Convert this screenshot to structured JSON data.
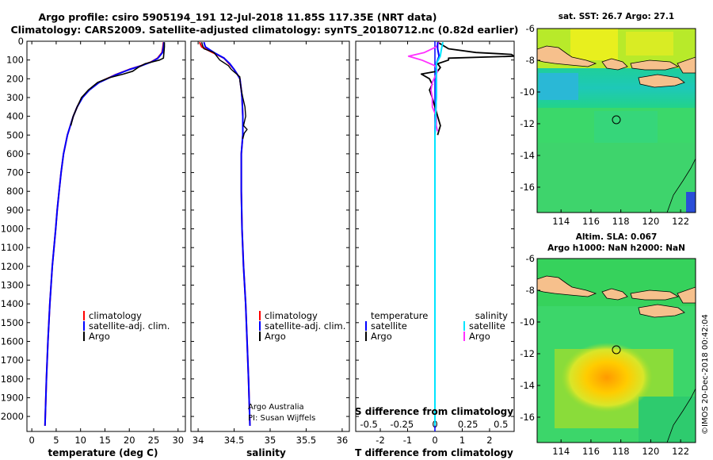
{
  "title": {
    "line1": "Argo profile: csiro 5905194_191 12-Jul-2018 11.85S 117.35E (NRT data)",
    "line2": "Climatology: CARS2009. Satellite-adjusted climatology: synTS_20180712.nc (0.82d earlier)"
  },
  "colors": {
    "climatology": "#ff0000",
    "satellite": "#0000ff",
    "argo": "#000000",
    "sat_salinity": "#00e5ff",
    "argo_salinity": "#ff30ff"
  },
  "chart_data": [
    {
      "id": "temperature",
      "type": "line",
      "xlabel": "temperature (deg C)",
      "ylabel": "",
      "xlim": [
        -1,
        31.5
      ],
      "ylim": [
        2080,
        0
      ],
      "xticks": [
        0,
        5,
        10,
        15,
        20,
        25,
        30
      ],
      "yticks": [
        0,
        100,
        200,
        300,
        400,
        500,
        600,
        700,
        800,
        900,
        1000,
        1100,
        1200,
        1300,
        1400,
        1500,
        1600,
        1700,
        1800,
        1900,
        2000
      ],
      "legend": [
        "climatology",
        "satellite-adj. clim.",
        "Argo"
      ],
      "series": [
        {
          "name": "climatology",
          "depth": [
            5,
            30,
            60,
            90,
            110,
            130,
            150,
            180,
            220,
            260,
            300,
            350,
            400,
            500,
            600,
            700,
            800,
            900,
            1000,
            1200,
            1400,
            1600,
            1800,
            2050
          ],
          "values": [
            27,
            26.9,
            26.7,
            25.8,
            24.5,
            22.4,
            20,
            17,
            13.7,
            11.7,
            10.3,
            9.3,
            8.5,
            7.3,
            6.5,
            6,
            5.6,
            5.2,
            4.9,
            4.2,
            3.7,
            3.3,
            3,
            2.7
          ]
        },
        {
          "name": "satellite-adj. clim.",
          "depth": [
            5,
            30,
            60,
            90,
            110,
            130,
            150,
            180,
            220,
            260,
            300,
            350,
            400,
            500,
            600,
            700,
            800,
            900,
            1000,
            1200,
            1400,
            1600,
            1800,
            2050
          ],
          "values": [
            27.1,
            27,
            26.8,
            25.9,
            24.6,
            22.5,
            20.1,
            17.1,
            13.8,
            11.8,
            10.4,
            9.3,
            8.5,
            7.3,
            6.5,
            6,
            5.6,
            5.2,
            4.9,
            4.2,
            3.7,
            3.3,
            3,
            2.7
          ]
        },
        {
          "name": "Argo",
          "depth": [
            5,
            30,
            60,
            90,
            100,
            120,
            140,
            160,
            175,
            195,
            220,
            260,
            300,
            350,
            400,
            450
          ],
          "values": [
            27.2,
            27.2,
            27.1,
            27,
            26.2,
            23.2,
            21.8,
            20.7,
            18.8,
            15.8,
            13.5,
            11.6,
            10.2,
            9.3,
            8.5,
            8
          ]
        }
      ]
    },
    {
      "id": "salinity",
      "type": "line",
      "xlabel": "salinity",
      "ylabel": "",
      "xlim": [
        33.9,
        36.1
      ],
      "ylim": [
        2080,
        0
      ],
      "xticks": [
        34,
        34.5,
        35,
        35.5,
        36
      ],
      "xticklabels": [
        "34",
        "34.5",
        "35",
        "35.5",
        "36"
      ],
      "legend": [
        "climatology",
        "satellite-adj. clim.",
        "Argo"
      ],
      "credit": [
        "Argo Australia",
        "PI: Susan Wijffels"
      ],
      "series": [
        {
          "name": "climatology",
          "depth": [
            5,
            30,
            60,
            90,
            120,
            150,
            180,
            200,
            260,
            300,
            400,
            500,
            600,
            800,
            1000,
            1200,
            1400,
            1600,
            1800,
            2050
          ],
          "values": [
            34.02,
            34.05,
            34.2,
            34.36,
            34.43,
            34.5,
            34.55,
            34.58,
            34.6,
            34.61,
            34.62,
            34.62,
            34.6,
            34.6,
            34.61,
            34.63,
            34.66,
            34.68,
            34.7,
            34.72
          ]
        },
        {
          "name": "satellite-adj. clim.",
          "depth": [
            5,
            30,
            60,
            90,
            120,
            150,
            180,
            200,
            260,
            300,
            400,
            500,
            600,
            800,
            1000,
            1200,
            1400,
            1600,
            1800,
            2050
          ],
          "values": [
            34.08,
            34.1,
            34.22,
            34.36,
            34.44,
            34.5,
            34.55,
            34.58,
            34.6,
            34.61,
            34.62,
            34.62,
            34.6,
            34.6,
            34.61,
            34.63,
            34.66,
            34.68,
            34.7,
            34.72
          ]
        },
        {
          "name": "Argo",
          "depth": [
            5,
            20,
            40,
            60,
            80,
            100,
            110,
            130,
            150,
            170,
            190,
            210,
            260,
            300,
            350,
            400,
            450,
            470,
            490,
            520
          ],
          "values": [
            34.05,
            34.06,
            34.08,
            34.22,
            34.26,
            34.3,
            34.34,
            34.42,
            34.46,
            34.52,
            34.58,
            34.58,
            34.6,
            34.62,
            34.65,
            34.66,
            34.63,
            34.68,
            34.64,
            34.62
          ]
        }
      ]
    },
    {
      "id": "difference",
      "type": "line",
      "xlabel": "T difference from climatology",
      "xlabel2": "S difference from climatology",
      "xlim": [
        -2.9,
        2.9
      ],
      "ylim": [
        2080,
        0
      ],
      "xticks": [
        -2,
        -1,
        0,
        1,
        2
      ],
      "x2ticks": [
        -0.5,
        -0.25,
        0,
        0.25,
        0.5
      ],
      "x2ticklabels": [
        "-0.5",
        "-0.25",
        "0",
        "0.25",
        "0.5"
      ],
      "legend_left_title": "temperature",
      "legend_right_title": "salinity",
      "legend_left": [
        "satellite",
        "Argo"
      ],
      "legend_right": [
        "satellite",
        "Argo"
      ],
      "series": [
        {
          "name": "T satellite",
          "depth": [
            5,
            40,
            80,
            120,
            160,
            200,
            300,
            500,
            800,
            1200,
            2050
          ],
          "values": [
            0.1,
            0.1,
            0.15,
            0.05,
            0.05,
            0.05,
            0.05,
            0,
            0,
            0,
            0
          ]
        },
        {
          "name": "T Argo",
          "depth": [
            5,
            40,
            60,
            70,
            80,
            90,
            100,
            120,
            140,
            160,
            175,
            200,
            230,
            260,
            300,
            350,
            400,
            450,
            500
          ],
          "values": [
            0.1,
            0.5,
            1.5,
            2.8,
            2.9,
            0.5,
            0.5,
            0.1,
            0.2,
            0.1,
            -0.5,
            -0.2,
            -0.1,
            -0.2,
            -0.1,
            0,
            0.1,
            0.2,
            0.1
          ]
        },
        {
          "name": "S satellite",
          "depth": [
            5,
            40,
            80,
            120,
            160,
            200,
            300,
            500,
            800,
            1200,
            2050
          ],
          "values": [
            0.06,
            0.05,
            0.04,
            0.01,
            0.01,
            0.01,
            0.01,
            0,
            0,
            0,
            0
          ]
        },
        {
          "name": "S Argo",
          "depth": [
            5,
            30,
            60,
            80,
            100,
            130,
            160,
            190,
            220,
            260,
            300,
            350,
            400,
            450,
            480
          ],
          "values": [
            0.03,
            0.01,
            -0.08,
            -0.2,
            -0.1,
            0,
            0.02,
            0,
            -0.02,
            -0.03,
            -0.02,
            -0.02,
            0.01,
            0.01,
            0.02
          ]
        }
      ]
    }
  ],
  "maps": [
    {
      "id": "sst",
      "title": "sat. SST: 26.7 Argo: 27.1",
      "xticks": [
        "114",
        "116",
        "118",
        "120",
        "122"
      ],
      "yticks": [
        "-6",
        "-8",
        "-10",
        "-12",
        "-14",
        "-16"
      ]
    },
    {
      "id": "sla",
      "title_line1": "Altim. SLA: 0.067",
      "title_line2": "Argo h1000: NaN h2000: NaN",
      "xticks": [
        "114",
        "116",
        "118",
        "120",
        "122"
      ],
      "yticks": [
        "-6",
        "-8",
        "-10",
        "-12",
        "-14",
        "-16"
      ]
    }
  ],
  "watermark": "©IMOS 20-Dec-2018 00:42:04"
}
